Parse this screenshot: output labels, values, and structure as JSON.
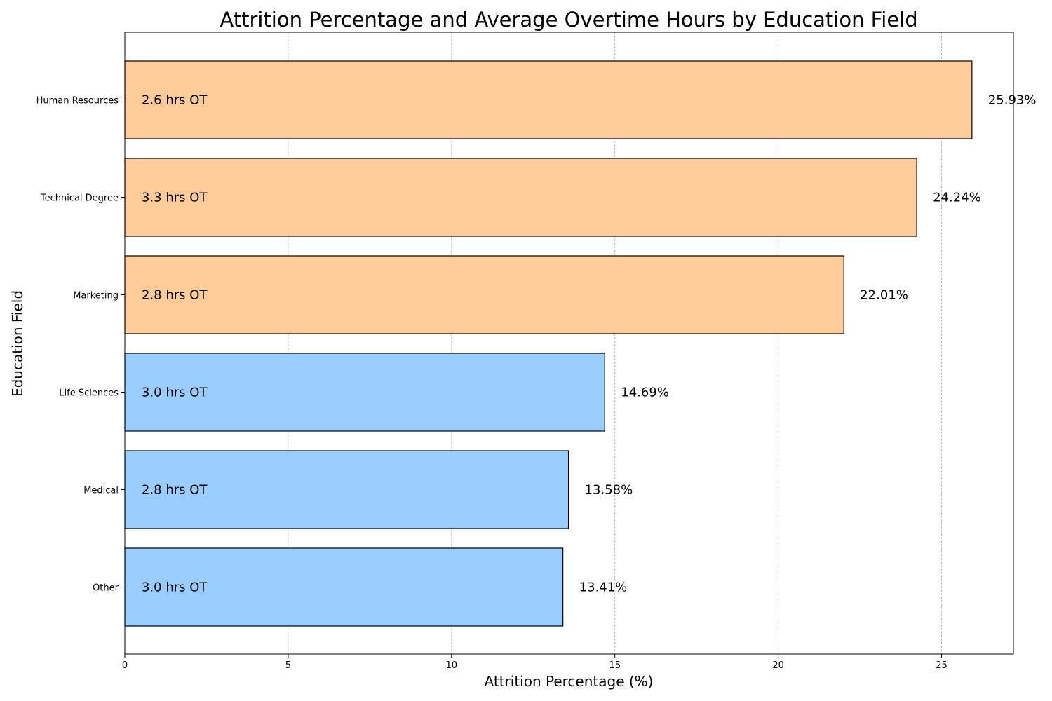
{
  "chart_data": {
    "type": "bar",
    "orientation": "horizontal",
    "title": "Attrition Percentage and Average Overtime Hours by Education Field",
    "xlabel": "Attrition Percentage (%)",
    "ylabel": "Education Field",
    "xlim": [
      0,
      27.2
    ],
    "xticks": [
      0,
      5,
      10,
      15,
      20,
      25
    ],
    "grid": "x-dashed",
    "categories": [
      "Human Resources",
      "Technical Degree",
      "Marketing",
      "Life Sciences",
      "Medical",
      "Other"
    ],
    "values": [
      25.93,
      24.24,
      22.01,
      14.69,
      13.58,
      13.41
    ],
    "value_labels": [
      "25.93%",
      "24.24%",
      "22.01%",
      "14.69%",
      "13.58%",
      "13.41%"
    ],
    "overtime_labels": [
      "2.6 hrs OT",
      "3.3 hrs OT",
      "2.8 hrs OT",
      "3.0 hrs OT",
      "2.8 hrs OT",
      "3.0 hrs OT"
    ],
    "colors": [
      "#ffcc99",
      "#ffcc99",
      "#ffcc99",
      "#99ccff",
      "#99ccff",
      "#99ccff"
    ]
  }
}
